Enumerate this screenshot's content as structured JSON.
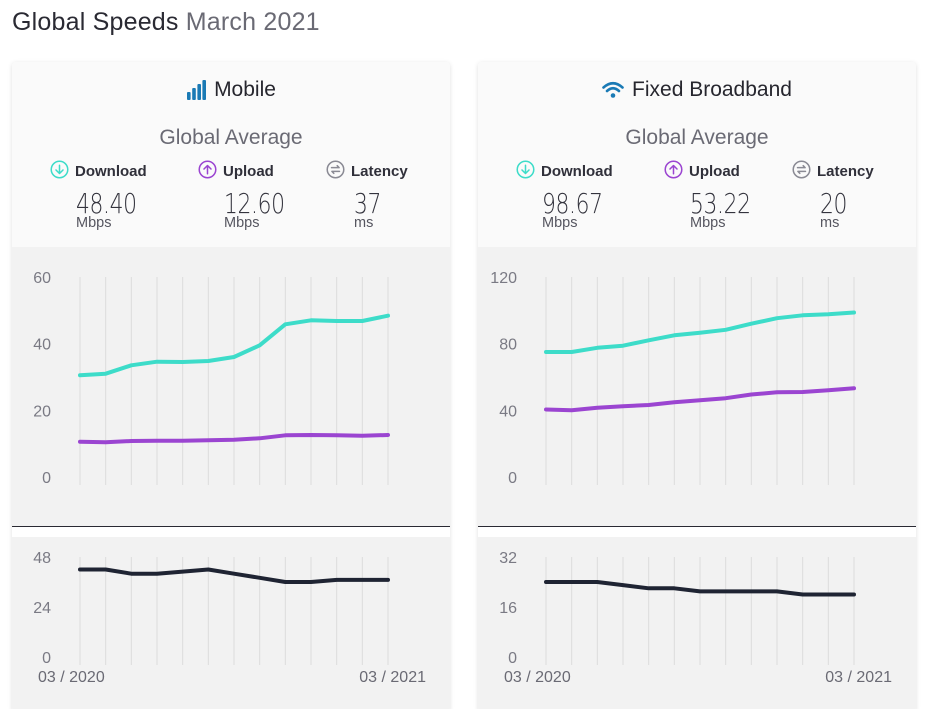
{
  "page": {
    "title": "Global Speeds",
    "subtitle": "March 2021"
  },
  "colors": {
    "download": "#3ddcc9",
    "upload": "#9b45d1",
    "latency": "#1f2433",
    "accent": "#1a7ab5",
    "grid": "#dcdcdc"
  },
  "cards": [
    {
      "id": "mobile",
      "title": "Mobile",
      "icon": "signal-bars-icon",
      "average_label": "Global Average",
      "metrics": [
        {
          "label": "Download",
          "value": "48.40",
          "unit": "Mbps",
          "icon": "download-arrow-icon"
        },
        {
          "label": "Upload",
          "value": "12.60",
          "unit": "Mbps",
          "icon": "upload-arrow-icon"
        },
        {
          "label": "Latency",
          "value": "37",
          "unit": "ms",
          "icon": "latency-icon"
        }
      ],
      "date_start": "03 / 2020",
      "date_end": "03 / 2021"
    },
    {
      "id": "fixed",
      "title": "Fixed Broadband",
      "icon": "wifi-icon",
      "average_label": "Global Average",
      "metrics": [
        {
          "label": "Download",
          "value": "98.67",
          "unit": "Mbps",
          "icon": "download-arrow-icon"
        },
        {
          "label": "Upload",
          "value": "53.22",
          "unit": "Mbps",
          "icon": "upload-arrow-icon"
        },
        {
          "label": "Latency",
          "value": "20",
          "unit": "ms",
          "icon": "latency-icon"
        }
      ],
      "date_start": "03 / 2020",
      "date_end": "03 / 2021"
    }
  ],
  "chart_data": [
    {
      "type": "line",
      "panel": "mobile-speed",
      "x": [
        "03/2020",
        "04/2020",
        "05/2020",
        "06/2020",
        "07/2020",
        "08/2020",
        "09/2020",
        "10/2020",
        "11/2020",
        "12/2020",
        "01/2021",
        "02/2021",
        "03/2021"
      ],
      "ylim": [
        0,
        60
      ],
      "yticks": [
        0,
        20,
        40,
        60
      ],
      "grid": true,
      "series": [
        {
          "key": "download",
          "values": [
            30.5,
            31.0,
            33.5,
            34.6,
            34.5,
            34.8,
            36.0,
            39.5,
            45.8,
            47.0,
            46.8,
            46.8,
            48.4
          ]
        },
        {
          "key": "upload",
          "values": [
            10.6,
            10.4,
            10.8,
            10.9,
            10.9,
            11.0,
            11.2,
            11.6,
            12.5,
            12.6,
            12.5,
            12.4,
            12.6
          ]
        }
      ]
    },
    {
      "type": "line",
      "panel": "mobile-latency",
      "x": [
        "03/2020",
        "04/2020",
        "05/2020",
        "06/2020",
        "07/2020",
        "08/2020",
        "09/2020",
        "10/2020",
        "11/2020",
        "12/2020",
        "01/2021",
        "02/2021",
        "03/2021"
      ],
      "ylim": [
        0,
        48
      ],
      "yticks": [
        0,
        24,
        48
      ],
      "grid": true,
      "series": [
        {
          "key": "latency",
          "values": [
            42,
            42,
            40,
            40,
            41,
            42,
            40,
            38,
            36,
            36,
            37,
            37,
            37
          ]
        }
      ]
    },
    {
      "type": "line",
      "panel": "fixed-speed",
      "x": [
        "03/2020",
        "04/2020",
        "05/2020",
        "06/2020",
        "07/2020",
        "08/2020",
        "09/2020",
        "10/2020",
        "11/2020",
        "12/2020",
        "01/2021",
        "02/2021",
        "03/2021"
      ],
      "ylim": [
        0,
        120
      ],
      "yticks": [
        0,
        40,
        80,
        120
      ],
      "grid": true,
      "series": [
        {
          "key": "download",
          "values": [
            75.0,
            75.0,
            77.5,
            78.8,
            82.0,
            85.0,
            86.5,
            88.3,
            92.0,
            95.3,
            97.0,
            97.6,
            98.7
          ]
        },
        {
          "key": "upload",
          "values": [
            40.5,
            40.0,
            41.5,
            42.5,
            43.2,
            44.8,
            46.0,
            47.3,
            49.5,
            50.8,
            51.0,
            52.0,
            53.2
          ]
        }
      ]
    },
    {
      "type": "line",
      "panel": "fixed-latency",
      "x": [
        "03/2020",
        "04/2020",
        "05/2020",
        "06/2020",
        "07/2020",
        "08/2020",
        "09/2020",
        "10/2020",
        "11/2020",
        "12/2020",
        "01/2021",
        "02/2021",
        "03/2021"
      ],
      "ylim": [
        0,
        32
      ],
      "yticks": [
        0,
        16,
        32
      ],
      "grid": true,
      "series": [
        {
          "key": "latency",
          "values": [
            24,
            24,
            24,
            23,
            22,
            22,
            21,
            21,
            21,
            21,
            20,
            20,
            20
          ]
        }
      ]
    }
  ]
}
